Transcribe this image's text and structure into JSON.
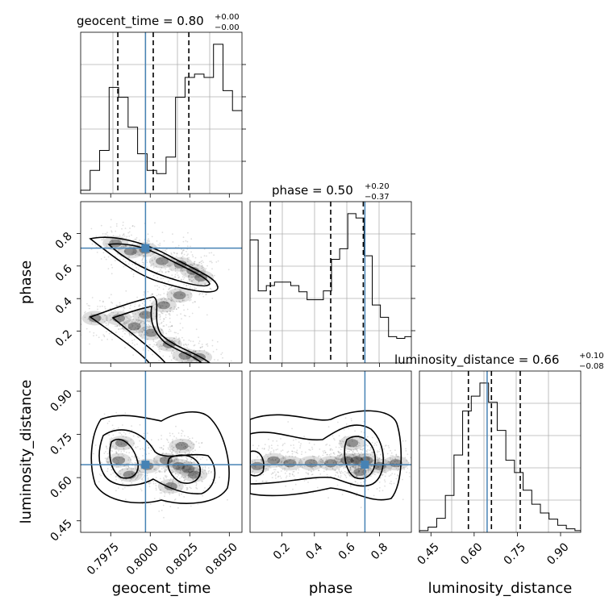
{
  "chart_data": {
    "type": "corner",
    "parameters": [
      "geocent_time",
      "phase",
      "luminosity_distance"
    ],
    "axis_labels": {
      "geocent_time": "geocent_time",
      "phase": "phase",
      "luminosity_distance": "luminosity_distance"
    },
    "truths": {
      "geocent_time": 0.7997,
      "phase": 0.71,
      "luminosity_distance": 0.645
    },
    "ranges": {
      "geocent_time": [
        0.7956,
        0.8058
      ],
      "phase": [
        0.005,
        0.995
      ],
      "luminosity_distance": [
        0.41,
        0.97
      ]
    },
    "ticks": {
      "geocent_time": [
        "0.7975",
        "0.8000",
        "0.8025",
        "0.8050"
      ],
      "phase": [
        "0.2",
        "0.4",
        "0.6",
        "0.8"
      ],
      "luminosity_distance": [
        "0.45",
        "0.60",
        "0.75",
        "0.90"
      ]
    },
    "marginals": [
      {
        "parameter": "geocent_time",
        "title": {
          "prefix": "geocent_time = ",
          "value": "0.80",
          "upper": "+0.00",
          "lower": "−0.00"
        },
        "quantiles": [
          0.79795,
          0.80019,
          0.80244
        ],
        "bin_edges": [
          0.7956,
          0.7962,
          0.7968,
          0.7974,
          0.798,
          0.7986,
          0.7992,
          0.7998,
          0.8004,
          0.801,
          0.8016,
          0.8022,
          0.8028,
          0.8034,
          0.804,
          0.8046,
          0.8052,
          0.8058
        ],
        "counts": [
          5,
          35,
          65,
          160,
          145,
          100,
          60,
          35,
          30,
          55,
          145,
          175,
          180,
          175,
          225,
          155,
          125
        ]
      },
      {
        "parameter": "phase",
        "title": {
          "prefix": "phase = ",
          "value": "0.50",
          "upper": "+0.20",
          "lower": "−0.37"
        },
        "quantiles": [
          0.13,
          0.5,
          0.7
        ],
        "bin_edges": [
          0.005,
          0.055,
          0.105,
          0.155,
          0.205,
          0.255,
          0.305,
          0.355,
          0.405,
          0.455,
          0.505,
          0.555,
          0.605,
          0.655,
          0.705,
          0.755,
          0.805,
          0.855,
          0.905,
          0.955,
          0.995
        ],
        "counts": [
          140,
          82,
          88,
          92,
          92,
          88,
          81,
          72,
          72,
          82,
          118,
          130,
          170,
          165,
          122,
          66,
          52,
          30,
          28,
          30
        ]
      },
      {
        "parameter": "luminosity_distance",
        "title": {
          "prefix": "luminosity_distance = ",
          "value": "0.66",
          "upper": "+0.10",
          "lower": "−0.08"
        },
        "quantiles": [
          0.58,
          0.66,
          0.76
        ],
        "bin_edges": [
          0.41,
          0.44,
          0.47,
          0.5,
          0.53,
          0.56,
          0.59,
          0.62,
          0.65,
          0.68,
          0.71,
          0.74,
          0.77,
          0.8,
          0.83,
          0.86,
          0.89,
          0.92,
          0.95,
          0.97
        ],
        "counts": [
          2,
          6,
          16,
          42,
          88,
          138,
          155,
          170,
          148,
          116,
          82,
          68,
          48,
          32,
          22,
          15,
          8,
          4,
          2
        ]
      }
    ],
    "joint": [
      {
        "x": "geocent_time",
        "y": "phase",
        "density_centers": [
          [
            0.7978,
            0.74
          ],
          [
            0.79875,
            0.69
          ],
          [
            0.7997,
            0.7
          ],
          [
            0.80075,
            0.63
          ],
          [
            0.8019,
            0.61
          ],
          [
            0.8027,
            0.57
          ],
          [
            0.8032,
            0.53
          ],
          [
            0.80185,
            0.42
          ],
          [
            0.80085,
            0.36
          ],
          [
            0.7997,
            0.3
          ],
          [
            0.798,
            0.28
          ],
          [
            0.7965,
            0.28
          ],
          [
            0.799,
            0.23
          ],
          [
            0.80005,
            0.19
          ],
          [
            0.8012,
            0.12
          ],
          [
            0.8022,
            0.05
          ],
          [
            0.8031,
            0.04
          ]
        ]
      },
      {
        "x": "geocent_time",
        "y": "luminosity_distance",
        "density_centers": [
          [
            0.798,
            0.66
          ],
          [
            0.7987,
            0.61
          ],
          [
            0.7982,
            0.72
          ],
          [
            0.7998,
            0.64
          ],
          [
            0.801,
            0.66
          ],
          [
            0.8018,
            0.64
          ],
          [
            0.8024,
            0.63
          ],
          [
            0.802,
            0.71
          ],
          [
            0.8028,
            0.61
          ],
          [
            0.8013,
            0.57
          ]
        ]
      },
      {
        "x": "phase",
        "y": "luminosity_distance",
        "density_centers": [
          [
            0.05,
            0.64
          ],
          [
            0.15,
            0.66
          ],
          [
            0.25,
            0.65
          ],
          [
            0.38,
            0.65
          ],
          [
            0.5,
            0.65
          ],
          [
            0.6,
            0.66
          ],
          [
            0.66,
            0.66
          ],
          [
            0.68,
            0.62
          ],
          [
            0.63,
            0.72
          ],
          [
            0.72,
            0.66
          ],
          [
            0.8,
            0.64
          ],
          [
            0.9,
            0.65
          ]
        ]
      }
    ]
  }
}
